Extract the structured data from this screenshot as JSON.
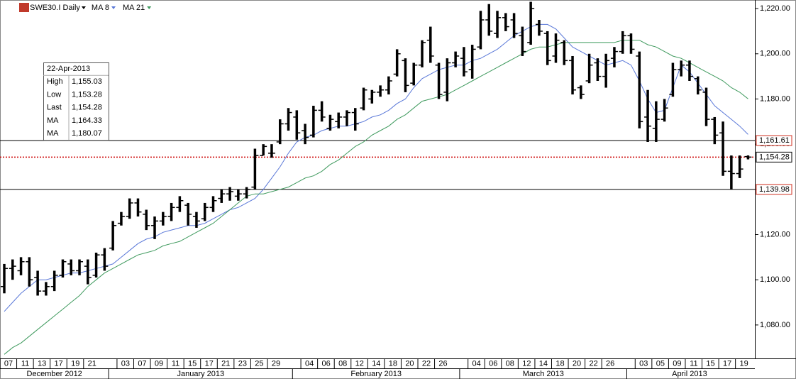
{
  "chart_data": {
    "type": "ohlc",
    "title": "SWE30.I Daily",
    "color": "#000000",
    "x": [
      "2012-12-07",
      "2012-12-10",
      "2012-12-11",
      "2012-12-12",
      "2012-12-13",
      "2012-12-14",
      "2012-12-17",
      "2012-12-18",
      "2012-12-19",
      "2012-12-20",
      "2012-12-21",
      "2012-12-27",
      "2012-12-28",
      "2013-01-02",
      "2013-01-03",
      "2013-01-04",
      "2013-01-07",
      "2013-01-08",
      "2013-01-09",
      "2013-01-10",
      "2013-01-11",
      "2013-01-14",
      "2013-01-15",
      "2013-01-16",
      "2013-01-17",
      "2013-01-18",
      "2013-01-21",
      "2013-01-22",
      "2013-01-23",
      "2013-01-24",
      "2013-01-25",
      "2013-01-28",
      "2013-01-29",
      "2013-01-30",
      "2013-01-31",
      "2013-02-01",
      "2013-02-04",
      "2013-02-05",
      "2013-02-06",
      "2013-02-07",
      "2013-02-08",
      "2013-02-11",
      "2013-02-12",
      "2013-02-13",
      "2013-02-14",
      "2013-02-15",
      "2013-02-18",
      "2013-02-19",
      "2013-02-20",
      "2013-02-21",
      "2013-02-22",
      "2013-02-25",
      "2013-02-26",
      "2013-02-27",
      "2013-02-28",
      "2013-03-01",
      "2013-03-04",
      "2013-03-05",
      "2013-03-06",
      "2013-03-07",
      "2013-03-08",
      "2013-03-11",
      "2013-03-12",
      "2013-03-13",
      "2013-03-14",
      "2013-03-15",
      "2013-03-18",
      "2013-03-19",
      "2013-03-20",
      "2013-03-21",
      "2013-03-22",
      "2013-03-25",
      "2013-03-26",
      "2013-03-27",
      "2013-03-28",
      "2013-04-02",
      "2013-04-03",
      "2013-04-04",
      "2013-04-05",
      "2013-04-08",
      "2013-04-09",
      "2013-04-10",
      "2013-04-11",
      "2013-04-12",
      "2013-04-15",
      "2013-04-16",
      "2013-04-17",
      "2013-04-18",
      "2013-04-19",
      "2013-04-22"
    ],
    "open": [
      1097,
      1105,
      1104,
      1108,
      1101,
      1095,
      1097,
      1102,
      1107,
      1104,
      1106,
      1102,
      1111,
      1114,
      1125,
      1128,
      1134,
      1129,
      1124,
      1126,
      1128,
      1132,
      1133,
      1128,
      1127,
      1132,
      1136,
      1138,
      1137,
      1138,
      1141,
      1155,
      1156,
      1161,
      1169,
      1172,
      1166,
      1164,
      1175,
      1167,
      1170,
      1172,
      1174,
      1176,
      1180,
      1183,
      1184,
      1191,
      1197,
      1187,
      1195,
      1206,
      1195,
      1183,
      1196,
      1198,
      1193,
      1203,
      1215,
      1209,
      1216,
      1215,
      1208,
      1205,
      1213,
      1209,
      1199,
      1205,
      1197,
      1185,
      1188,
      1196,
      1190,
      1198,
      1201,
      1208,
      1199,
      1172,
      1167,
      1171,
      1182,
      1193,
      1195,
      1189,
      1183,
      1171,
      1165,
      1148,
      1147,
      1154.5
    ],
    "high": [
      1107,
      1109,
      1110,
      1110,
      1104,
      1099,
      1104,
      1109,
      1109,
      1109,
      1109,
      1112,
      1114,
      1126,
      1130,
      1136,
      1136,
      1131,
      1128,
      1130,
      1134,
      1137,
      1134,
      1130,
      1134,
      1137,
      1140,
      1141,
      1140,
      1141,
      1158,
      1160,
      1160,
      1171,
      1176,
      1175,
      1169,
      1177,
      1179,
      1173,
      1174,
      1175,
      1176,
      1185,
      1184,
      1186,
      1190,
      1202,
      1198,
      1196,
      1206,
      1212,
      1196,
      1198,
      1201,
      1203,
      1204,
      1219,
      1222,
      1219,
      1218,
      1218,
      1212,
      1223,
      1215,
      1210,
      1209,
      1206,
      1199,
      1186,
      1200,
      1198,
      1200,
      1203,
      1210,
      1209,
      1201,
      1184,
      1179,
      1180,
      1196,
      1197,
      1197,
      1190,
      1185,
      1172,
      1170,
      1155,
      1155,
      1155.03
    ],
    "low": [
      1094,
      1100,
      1102,
      1097,
      1093,
      1093,
      1095,
      1101,
      1102,
      1102,
      1098,
      1101,
      1104,
      1113,
      1124,
      1127,
      1128,
      1122,
      1118,
      1124,
      1126,
      1130,
      1124,
      1123,
      1126,
      1130,
      1134,
      1135,
      1135,
      1136,
      1140,
      1155,
      1154,
      1160,
      1166,
      1162,
      1160,
      1163,
      1170,
      1166,
      1167,
      1168,
      1166,
      1175,
      1178,
      1181,
      1182,
      1190,
      1183,
      1186,
      1194,
      1196,
      1180,
      1179,
      1194,
      1190,
      1189,
      1202,
      1208,
      1207,
      1210,
      1207,
      1199,
      1204,
      1208,
      1195,
      1196,
      1195,
      1182,
      1180,
      1187,
      1188,
      1185,
      1194,
      1200,
      1200,
      1167,
      1161,
      1161,
      1170,
      1181,
      1190,
      1188,
      1182,
      1168,
      1160,
      1146,
      1140,
      1145,
      1153.28
    ],
    "close": [
      1105,
      1106,
      1108,
      1100,
      1095,
      1097,
      1102,
      1108,
      1104,
      1108,
      1101,
      1111,
      1106,
      1124,
      1128,
      1134,
      1130,
      1124,
      1126,
      1128,
      1132,
      1135,
      1129,
      1126,
      1132,
      1135,
      1138,
      1139,
      1138,
      1140,
      1155,
      1159,
      1156,
      1169,
      1174,
      1165,
      1163,
      1175,
      1172,
      1171,
      1172,
      1174,
      1169,
      1184,
      1183,
      1184,
      1188,
      1200,
      1186,
      1195,
      1205,
      1199,
      1182,
      1196,
      1199,
      1192,
      1202,
      1215,
      1210,
      1216,
      1212,
      1209,
      1201,
      1220,
      1210,
      1197,
      1206,
      1197,
      1184,
      1182,
      1195,
      1190,
      1197,
      1201,
      1208,
      1202,
      1170,
      1168,
      1171,
      1176,
      1193,
      1195,
      1190,
      1184,
      1171,
      1164,
      1148,
      1147,
      1149,
      1154.28
    ],
    "series": [
      {
        "name": "MA 8",
        "color": "#5a78d8",
        "values": [
          1086,
          1090,
          1094,
          1097,
          1100,
          1100,
          1101,
          1102,
          1103,
          1103,
          1104,
          1105,
          1106,
          1107,
          1110,
          1113,
          1116,
          1118,
          1119,
          1121,
          1122,
          1123,
          1124,
          1124,
          1125,
          1127,
          1129,
          1131,
          1132,
          1134,
          1136,
          1140,
          1145,
          1150,
          1156,
          1161,
          1163,
          1164,
          1166,
          1167,
          1168,
          1168,
          1169,
          1170,
          1172,
          1173,
          1175,
          1178,
          1180,
          1185,
          1189,
          1191,
          1193,
          1194,
          1195,
          1195,
          1197,
          1198,
          1200,
          1202,
          1205,
          1208,
          1210,
          1212,
          1213,
          1213,
          1211,
          1207,
          1203,
          1201,
          1199,
          1197,
          1195,
          1196,
          1197,
          1195,
          1188,
          1180,
          1174,
          1175,
          1185,
          1195,
          1192,
          1187,
          1182,
          1177,
          1174,
          1171,
          1168,
          1164.33
        ]
      },
      {
        "name": "MA 21",
        "color": "#3f9a5e",
        "values": [
          1067,
          1070,
          1072,
          1075,
          1078,
          1081,
          1084,
          1087,
          1090,
          1093,
          1097,
          1100,
          1103,
          1105,
          1107,
          1109,
          1111,
          1112,
          1113,
          1115,
          1116,
          1117,
          1119,
          1121,
          1123,
          1125,
          1128,
          1131,
          1134,
          1137,
          1138,
          1138,
          1139,
          1140,
          1141,
          1143,
          1145,
          1146,
          1148,
          1151,
          1153,
          1156,
          1159,
          1161,
          1164,
          1166,
          1168,
          1171,
          1173,
          1176,
          1179,
          1180,
          1181,
          1182,
          1184,
          1186,
          1188,
          1190,
          1192,
          1194,
          1196,
          1198,
          1200,
          1202,
          1203,
          1203,
          1204,
          1205,
          1205,
          1205,
          1205,
          1205,
          1205,
          1205,
          1206,
          1206,
          1206,
          1204,
          1203,
          1201,
          1199,
          1198,
          1196,
          1194,
          1192,
          1190,
          1188,
          1185,
          1183,
          1180.07
        ]
      }
    ],
    "ylim": [
      1065.2,
      1223.8
    ],
    "yticks": [
      {
        "value": 1080,
        "label": "1,080.00"
      },
      {
        "value": 1100,
        "label": "1,100.00"
      },
      {
        "value": 1120,
        "label": "1,120.00"
      },
      {
        "value": 1140,
        "label": "1,140.00"
      },
      {
        "value": 1160,
        "label": "1,160.00"
      },
      {
        "value": 1180,
        "label": "1,180.00"
      },
      {
        "value": 1200,
        "label": "1,200.00"
      },
      {
        "value": 1220,
        "label": "1,220.00"
      }
    ],
    "xticks": [
      {
        "value": "2012-12-07",
        "label": "07"
      },
      {
        "value": "2012-12-11",
        "label": "11"
      },
      {
        "value": "2012-12-13",
        "label": "13"
      },
      {
        "value": "2012-12-17",
        "label": "17"
      },
      {
        "value": "2012-12-19",
        "label": "19"
      },
      {
        "value": "2012-12-21",
        "label": "21"
      },
      {
        "value": "2013-01-03",
        "label": "03"
      },
      {
        "value": "2013-01-07",
        "label": "07"
      },
      {
        "value": "2013-01-09",
        "label": "09"
      },
      {
        "value": "2013-01-11",
        "label": "11"
      },
      {
        "value": "2013-01-15",
        "label": "15"
      },
      {
        "value": "2013-01-17",
        "label": "17"
      },
      {
        "value": "2013-01-21",
        "label": "21"
      },
      {
        "value": "2013-01-23",
        "label": "23"
      },
      {
        "value": "2013-01-25",
        "label": "25"
      },
      {
        "value": "2013-01-29",
        "label": "29"
      },
      {
        "value": "2013-02-04",
        "label": "04"
      },
      {
        "value": "2013-02-06",
        "label": "06"
      },
      {
        "value": "2013-02-08",
        "label": "08"
      },
      {
        "value": "2013-02-12",
        "label": "12"
      },
      {
        "value": "2013-02-14",
        "label": "14"
      },
      {
        "value": "2013-02-18",
        "label": "18"
      },
      {
        "value": "2013-02-20",
        "label": "20"
      },
      {
        "value": "2013-02-22",
        "label": "22"
      },
      {
        "value": "2013-02-26",
        "label": "26"
      },
      {
        "value": "2013-03-04",
        "label": "04"
      },
      {
        "value": "2013-03-06",
        "label": "06"
      },
      {
        "value": "2013-03-08",
        "label": "08"
      },
      {
        "value": "2013-03-12",
        "label": "12"
      },
      {
        "value": "2013-03-14",
        "label": "14"
      },
      {
        "value": "2013-03-18",
        "label": "18"
      },
      {
        "value": "2013-03-20",
        "label": "20"
      },
      {
        "value": "2013-03-22",
        "label": "22"
      },
      {
        "value": "2013-03-26",
        "label": "26"
      },
      {
        "value": "2013-04-03",
        "label": "03"
      },
      {
        "value": "2013-04-05",
        "label": "05"
      },
      {
        "value": "2013-04-09",
        "label": "09"
      },
      {
        "value": "2013-04-11",
        "label": "11"
      },
      {
        "value": "2013-04-15",
        "label": "15"
      },
      {
        "value": "2013-04-17",
        "label": "17"
      },
      {
        "value": "2013-04-19",
        "label": "19"
      }
    ],
    "month_ticks": [
      {
        "value": "2012-12",
        "label": "December 2012"
      },
      {
        "value": "2013-01",
        "label": "January 2013"
      },
      {
        "value": "2013-02",
        "label": "February 2013"
      },
      {
        "value": "2013-03",
        "label": "March 2013"
      },
      {
        "value": "2013-04",
        "label": "April 2013"
      }
    ],
    "hlines": [
      {
        "value": 1161.61,
        "label": "1,161.61",
        "color": "#d03020"
      },
      {
        "value": 1139.98,
        "label": "1,139.98",
        "color": "#d03020"
      }
    ],
    "last_line": {
      "value": 1154.28,
      "label": "1,154.28",
      "color": "#cc0000"
    },
    "info_box": {
      "date": "22-Apr-2013",
      "rows": [
        {
          "label": "High",
          "value": "1,155.03"
        },
        {
          "label": "Low",
          "value": "1,153.28"
        },
        {
          "label": "Last",
          "value": "1,154.28"
        },
        {
          "label": "MA",
          "value": "1,164.33",
          "series": 0
        },
        {
          "label": "MA",
          "value": "1,180.07",
          "series": 1
        }
      ]
    }
  }
}
